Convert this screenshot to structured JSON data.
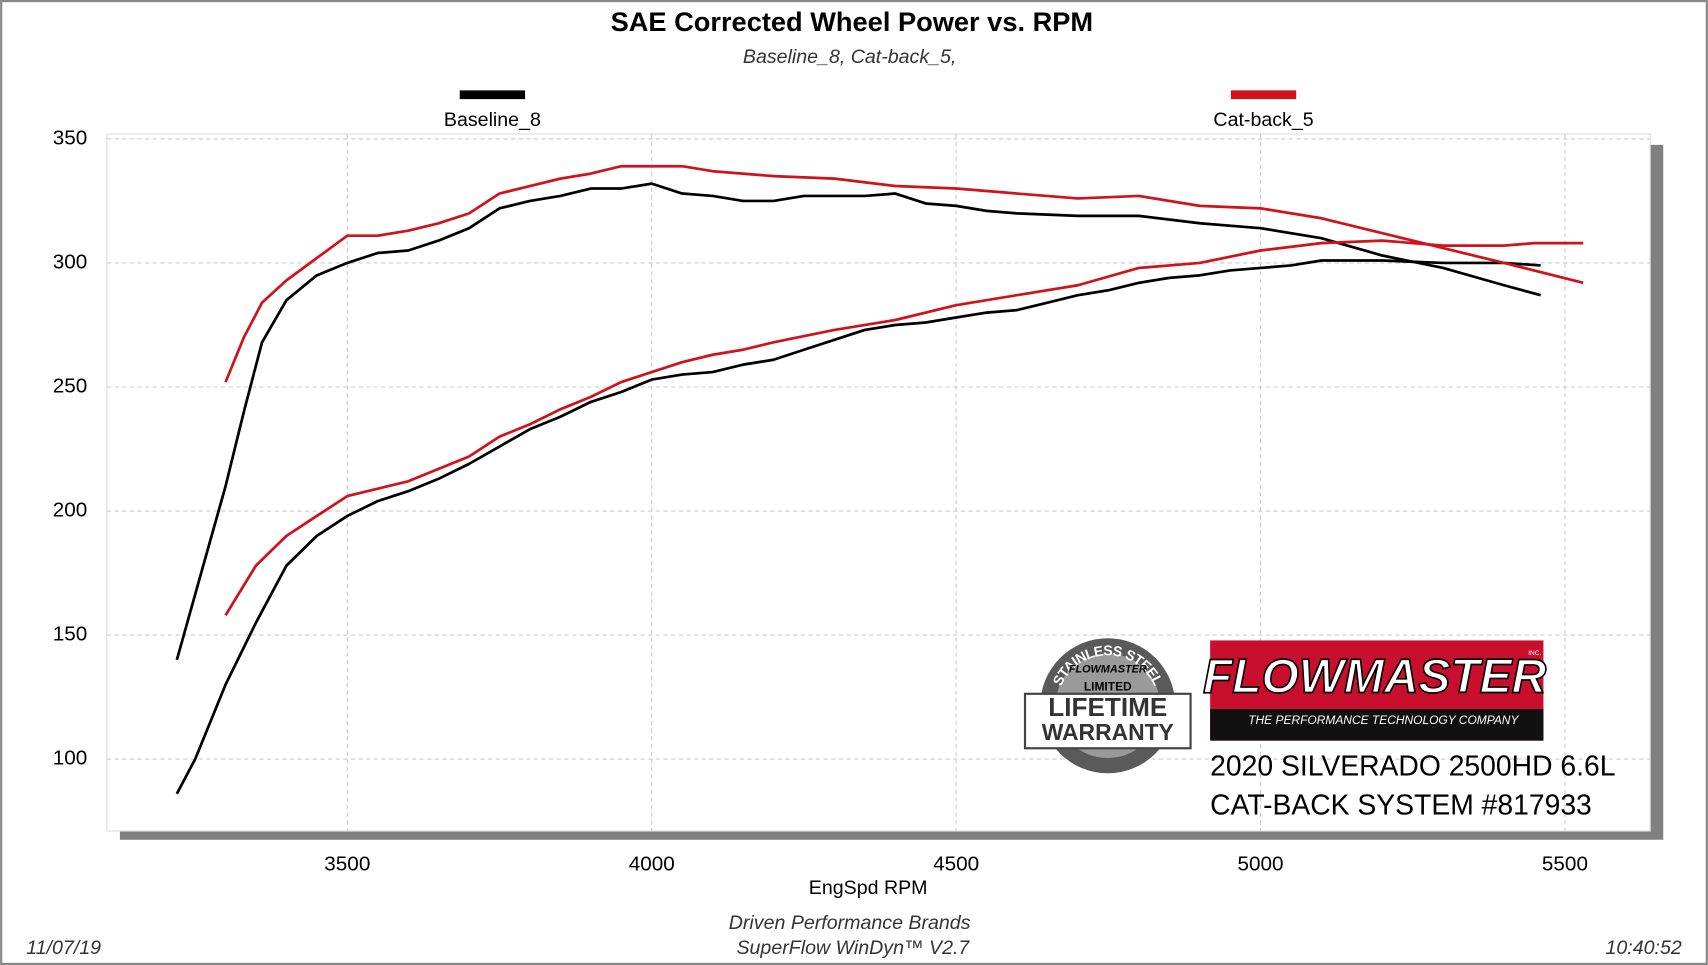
{
  "chart_data": {
    "type": "line",
    "title": "SAE Corrected Wheel Power vs. RPM",
    "subtitle": "Baseline_8, Cat-back_5,",
    "x_label": "EngSpd  RPM",
    "xlim": [
      3105,
      5640
    ],
    "ylim": [
      71,
      352
    ],
    "xticks": [
      3500,
      4000,
      4500,
      5000,
      5500
    ],
    "yticks": [
      100,
      150,
      200,
      250,
      300,
      350
    ],
    "grid": true,
    "legend": "top",
    "series": [
      {
        "name": "Baseline_8",
        "color": "#000000",
        "lines": [
          {
            "x": [
              3220,
              3260,
              3300,
              3330,
              3360,
              3400,
              3450,
              3500,
              3550,
              3600,
              3650,
              3700,
              3750,
              3800,
              3850,
              3900,
              3950,
              4000,
              4050,
              4100,
              4150,
              4200,
              4250,
              4300,
              4350,
              4400,
              4450,
              4500,
              4550,
              4600,
              4700,
              4800,
              4900,
              5000,
              5100,
              5200,
              5300,
              5400,
              5460
            ],
            "values": [
              140,
              175,
              210,
              240,
              268,
              285,
              295,
              300,
              304,
              305,
              309,
              314,
              322,
              325,
              327,
              330,
              330,
              332,
              328,
              327,
              325,
              325,
              327,
              327,
              327,
              328,
              324,
              323,
              321,
              320,
              319,
              319,
              316,
              314,
              310,
              303,
              298,
              291,
              287
            ]
          },
          {
            "x": [
              3220,
              3250,
              3300,
              3350,
              3400,
              3450,
              3500,
              3550,
              3600,
              3650,
              3700,
              3750,
              3800,
              3850,
              3900,
              3950,
              4000,
              4050,
              4100,
              4150,
              4200,
              4250,
              4300,
              4350,
              4400,
              4450,
              4500,
              4550,
              4600,
              4650,
              4700,
              4750,
              4800,
              4850,
              4900,
              4950,
              5000,
              5050,
              5100,
              5150,
              5200,
              5300,
              5400,
              5460
            ],
            "values": [
              86,
              100,
              130,
              155,
              178,
              190,
              198,
              204,
              208,
              213,
              219,
              226,
              233,
              238,
              244,
              248,
              253,
              255,
              256,
              259,
              261,
              265,
              269,
              273,
              275,
              276,
              278,
              280,
              281,
              284,
              287,
              289,
              292,
              294,
              295,
              297,
              298,
              299,
              301,
              301,
              301,
              300,
              300,
              299
            ]
          }
        ]
      },
      {
        "name": "Cat-back_5",
        "color": "#d0121b",
        "lines": [
          {
            "x": [
              3300,
              3330,
              3360,
              3400,
              3450,
              3500,
              3550,
              3600,
              3650,
              3700,
              3750,
              3800,
              3850,
              3900,
              3950,
              4000,
              4050,
              4100,
              4200,
              4300,
              4400,
              4500,
              4600,
              4700,
              4800,
              4900,
              5000,
              5100,
              5200,
              5300,
              5400,
              5530
            ],
            "values": [
              252,
              270,
              284,
              293,
              302,
              311,
              311,
              313,
              316,
              320,
              328,
              331,
              334,
              336,
              339,
              339,
              339,
              337,
              335,
              334,
              331,
              330,
              328,
              326,
              327,
              323,
              322,
              318,
              312,
              306,
              300,
              292
            ]
          },
          {
            "x": [
              3300,
              3350,
              3400,
              3450,
              3500,
              3550,
              3600,
              3650,
              3700,
              3750,
              3800,
              3850,
              3900,
              3950,
              4000,
              4050,
              4100,
              4150,
              4200,
              4300,
              4400,
              4500,
              4600,
              4700,
              4800,
              4900,
              5000,
              5100,
              5200,
              5300,
              5400,
              5450,
              5530
            ],
            "values": [
              158,
              178,
              190,
              198,
              206,
              209,
              212,
              217,
              222,
              230,
              235,
              241,
              246,
              252,
              256,
              260,
              263,
              265,
              268,
              273,
              277,
              283,
              287,
              291,
              298,
              300,
              305,
              308,
              309,
              307,
              307,
              308,
              308
            ]
          }
        ]
      }
    ],
    "footer": {
      "date": "11/07/19",
      "time": "10:40:52",
      "company": "Driven Performance Brands",
      "software": "SuperFlow WinDyn™ V2.7"
    },
    "badge": {
      "arc": "STAINLESS STEEL",
      "brand": "FLOWMASTER",
      "limited": "LIMITED",
      "line1": "LIFETIME",
      "line2": "WARRANTY"
    },
    "logo": {
      "brand": "FLOWMASTER",
      "inc": "INC.",
      "tagline": "THE PERFORMANCE TECHNOLOGY COMPANY"
    },
    "caption": [
      "2020 SILVERADO 2500HD 6.6L",
      "CAT-BACK SYSTEM #817933"
    ]
  }
}
